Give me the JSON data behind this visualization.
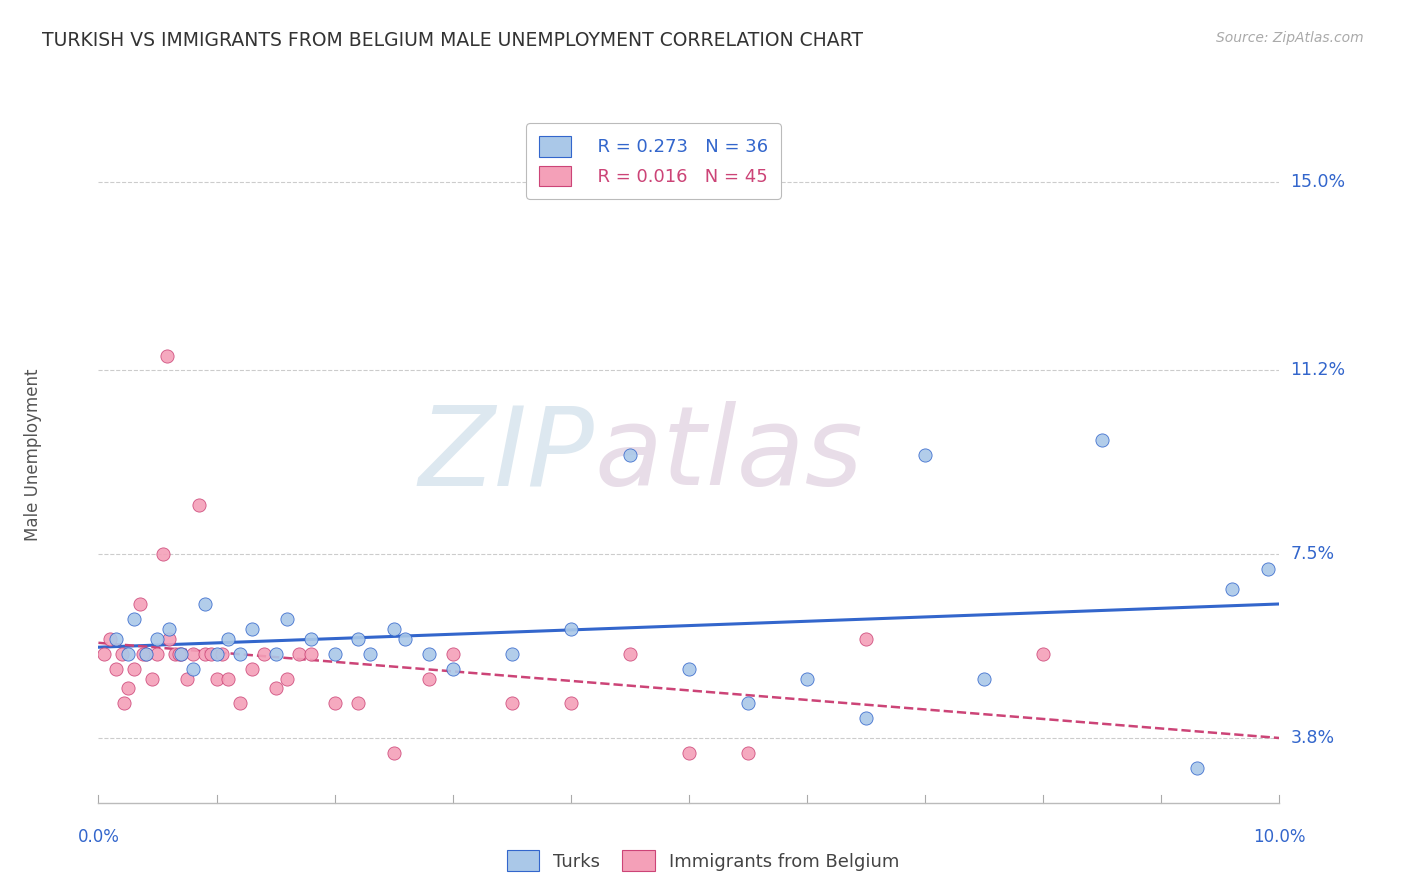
{
  "title": "TURKISH VS IMMIGRANTS FROM BELGIUM MALE UNEMPLOYMENT CORRELATION CHART",
  "source": "Source: ZipAtlas.com",
  "ylabel": "Male Unemployment",
  "yticks": [
    3.8,
    7.5,
    11.2,
    15.0
  ],
  "ytick_labels": [
    "3.8%",
    "7.5%",
    "11.2%",
    "15.0%"
  ],
  "xlim": [
    0.0,
    10.0
  ],
  "ylim": [
    2.5,
    16.5
  ],
  "legend_r1": "R = 0.273",
  "legend_n1": "N = 36",
  "legend_r2": "R = 0.016",
  "legend_n2": "N = 45",
  "label_turks": "Turks",
  "label_belgium": "Immigrants from Belgium",
  "color_turks": "#aac8e8",
  "color_belgium": "#f4a0b8",
  "trendline_turks": "#3366cc",
  "trendline_belgium": "#cc4477",
  "watermark_zip": "ZIP",
  "watermark_atlas": "atlas",
  "turks_x": [
    0.15,
    0.25,
    0.3,
    0.4,
    0.5,
    0.6,
    0.7,
    0.8,
    0.9,
    1.0,
    1.1,
    1.2,
    1.3,
    1.5,
    1.6,
    1.8,
    2.0,
    2.2,
    2.3,
    2.5,
    2.6,
    2.8,
    3.0,
    3.5,
    4.0,
    4.5,
    5.0,
    5.5,
    6.0,
    6.5,
    7.0,
    7.5,
    8.5,
    9.3,
    9.6,
    9.9
  ],
  "turks_y": [
    5.8,
    5.5,
    6.2,
    5.5,
    5.8,
    6.0,
    5.5,
    5.2,
    6.5,
    5.5,
    5.8,
    5.5,
    6.0,
    5.5,
    6.2,
    5.8,
    5.5,
    5.8,
    5.5,
    6.0,
    5.8,
    5.5,
    5.2,
    5.5,
    6.0,
    9.5,
    5.2,
    4.5,
    5.0,
    4.2,
    9.5,
    5.0,
    9.8,
    3.2,
    6.8,
    7.2
  ],
  "belgium_x": [
    0.05,
    0.1,
    0.15,
    0.2,
    0.25,
    0.3,
    0.35,
    0.4,
    0.45,
    0.5,
    0.55,
    0.6,
    0.65,
    0.7,
    0.75,
    0.8,
    0.85,
    0.9,
    0.95,
    1.0,
    1.1,
    1.2,
    1.3,
    1.4,
    1.5,
    1.6,
    1.7,
    1.8,
    2.0,
    2.2,
    2.5,
    2.8,
    3.0,
    3.5,
    4.0,
    4.5,
    5.0,
    5.5,
    6.5,
    8.0,
    0.22,
    0.38,
    0.58,
    0.68,
    1.05
  ],
  "belgium_y": [
    5.5,
    5.8,
    5.2,
    5.5,
    4.8,
    5.2,
    6.5,
    5.5,
    5.0,
    5.5,
    7.5,
    5.8,
    5.5,
    5.5,
    5.0,
    5.5,
    8.5,
    5.5,
    5.5,
    5.0,
    5.0,
    4.5,
    5.2,
    5.5,
    4.8,
    5.0,
    5.5,
    5.5,
    4.5,
    4.5,
    3.5,
    5.0,
    5.5,
    4.5,
    4.5,
    5.5,
    3.5,
    3.5,
    5.8,
    5.5,
    4.5,
    5.5,
    11.5,
    5.5,
    5.5
  ]
}
